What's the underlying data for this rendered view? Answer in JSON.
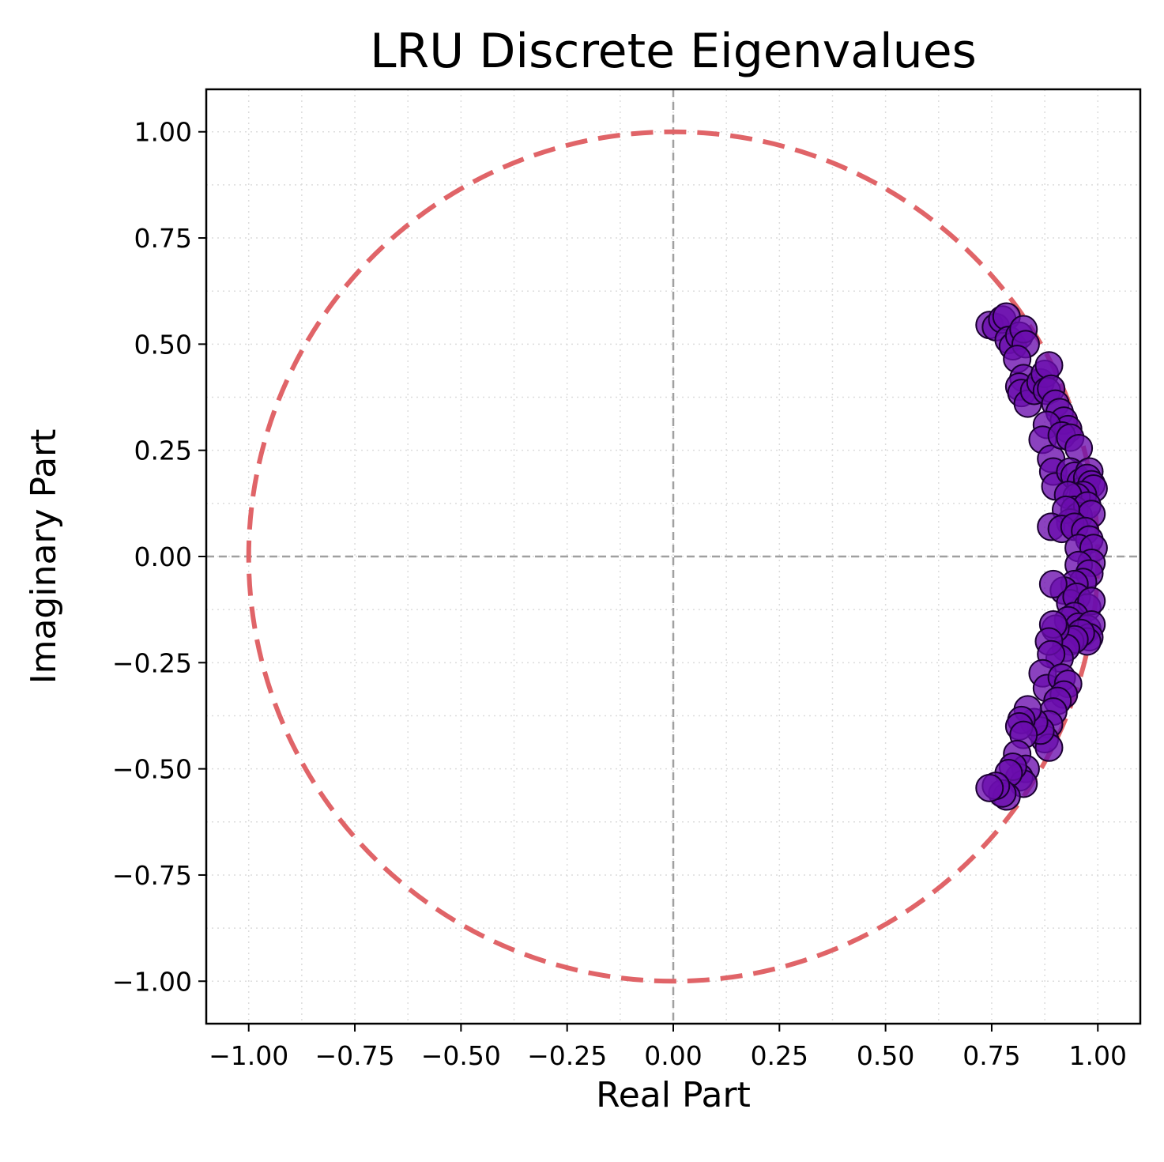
{
  "chart_data": {
    "type": "scatter",
    "title": "LRU Discrete Eigenvalues",
    "xlabel": "Real Part",
    "ylabel": "Imaginary Part",
    "xlim": [
      -1.1,
      1.1
    ],
    "ylim": [
      -1.1,
      1.1
    ],
    "x_ticks": [
      -1.0,
      -0.75,
      -0.5,
      -0.25,
      0.0,
      0.25,
      0.5,
      0.75,
      1.0
    ],
    "x_tick_labels": [
      "−1.00",
      "−0.75",
      "−0.50",
      "−0.25",
      "0.00",
      "0.25",
      "0.50",
      "0.75",
      "1.00"
    ],
    "y_ticks": [
      1.0,
      0.75,
      0.5,
      0.25,
      0.0,
      -0.25,
      -0.5,
      -0.75,
      -1.0
    ],
    "y_tick_labels": [
      "1.00",
      "0.75",
      "0.50",
      "0.25",
      "0.00",
      "−0.25",
      "−0.50",
      "−0.75",
      "−1.00"
    ],
    "grid": true,
    "reference_lines": {
      "x": 0,
      "y": 0,
      "color": "#a0a0a0"
    },
    "unit_circle": {
      "radius": 1.0,
      "color": "#e06468"
    },
    "marker_color": "#6a0dad",
    "points": [
      [
        0.745,
        0.545
      ],
      [
        0.76,
        0.54
      ],
      [
        0.775,
        0.558
      ],
      [
        0.785,
        0.565
      ],
      [
        0.79,
        0.51
      ],
      [
        0.8,
        0.495
      ],
      [
        0.815,
        0.52
      ],
      [
        0.825,
        0.535
      ],
      [
        0.83,
        0.5
      ],
      [
        0.81,
        0.465
      ],
      [
        0.825,
        0.42
      ],
      [
        0.815,
        0.4
      ],
      [
        0.82,
        0.385
      ],
      [
        0.835,
        0.36
      ],
      [
        0.85,
        0.39
      ],
      [
        0.865,
        0.41
      ],
      [
        0.875,
        0.43
      ],
      [
        0.885,
        0.45
      ],
      [
        0.88,
        0.39
      ],
      [
        0.89,
        0.395
      ],
      [
        0.9,
        0.36
      ],
      [
        0.91,
        0.34
      ],
      [
        0.92,
        0.32
      ],
      [
        0.93,
        0.3
      ],
      [
        0.88,
        0.31
      ],
      [
        0.87,
        0.275
      ],
      [
        0.89,
        0.23
      ],
      [
        0.895,
        0.2
      ],
      [
        0.9,
        0.165
      ],
      [
        0.915,
        0.285
      ],
      [
        0.935,
        0.28
      ],
      [
        0.955,
        0.255
      ],
      [
        0.935,
        0.2
      ],
      [
        0.945,
        0.19
      ],
      [
        0.96,
        0.175
      ],
      [
        0.97,
        0.16
      ],
      [
        0.98,
        0.2
      ],
      [
        0.975,
        0.185
      ],
      [
        0.985,
        0.17
      ],
      [
        0.99,
        0.16
      ],
      [
        0.965,
        0.145
      ],
      [
        0.95,
        0.14
      ],
      [
        0.93,
        0.145
      ],
      [
        0.945,
        0.11
      ],
      [
        0.955,
        0.095
      ],
      [
        0.975,
        0.12
      ],
      [
        0.985,
        0.1
      ],
      [
        0.935,
        0.08
      ],
      [
        0.925,
        0.11
      ],
      [
        0.89,
        0.07
      ],
      [
        0.915,
        0.065
      ],
      [
        0.945,
        0.07
      ],
      [
        0.97,
        0.06
      ],
      [
        0.98,
        0.04
      ],
      [
        0.955,
        0.02
      ],
      [
        0.99,
        0.02
      ],
      [
        0.985,
        -0.015
      ],
      [
        0.955,
        -0.02
      ],
      [
        0.98,
        -0.04
      ],
      [
        0.965,
        -0.06
      ],
      [
        0.945,
        -0.065
      ],
      [
        0.92,
        -0.08
      ],
      [
        0.895,
        -0.065
      ],
      [
        0.935,
        -0.11
      ],
      [
        0.95,
        -0.095
      ],
      [
        0.975,
        -0.12
      ],
      [
        0.985,
        -0.105
      ],
      [
        0.945,
        -0.14
      ],
      [
        0.93,
        -0.15
      ],
      [
        0.955,
        -0.165
      ],
      [
        0.965,
        -0.18
      ],
      [
        0.975,
        -0.17
      ],
      [
        0.985,
        -0.16
      ],
      [
        0.98,
        -0.19
      ],
      [
        0.975,
        -0.2
      ],
      [
        0.96,
        -0.18
      ],
      [
        0.935,
        -0.2
      ],
      [
        0.945,
        -0.195
      ],
      [
        0.925,
        -0.215
      ],
      [
        0.91,
        -0.24
      ],
      [
        0.9,
        -0.17
      ],
      [
        0.895,
        -0.16
      ],
      [
        0.885,
        -0.2
      ],
      [
        0.89,
        -0.23
      ],
      [
        0.87,
        -0.275
      ],
      [
        0.88,
        -0.31
      ],
      [
        0.915,
        -0.285
      ],
      [
        0.93,
        -0.3
      ],
      [
        0.92,
        -0.325
      ],
      [
        0.905,
        -0.34
      ],
      [
        0.895,
        -0.365
      ],
      [
        0.885,
        -0.395
      ],
      [
        0.875,
        -0.43
      ],
      [
        0.885,
        -0.45
      ],
      [
        0.865,
        -0.41
      ],
      [
        0.85,
        -0.39
      ],
      [
        0.835,
        -0.36
      ],
      [
        0.82,
        -0.385
      ],
      [
        0.815,
        -0.4
      ],
      [
        0.825,
        -0.42
      ],
      [
        0.81,
        -0.465
      ],
      [
        0.83,
        -0.5
      ],
      [
        0.815,
        -0.52
      ],
      [
        0.825,
        -0.535
      ],
      [
        0.8,
        -0.495
      ],
      [
        0.79,
        -0.51
      ],
      [
        0.785,
        -0.565
      ],
      [
        0.775,
        -0.558
      ],
      [
        0.76,
        -0.54
      ],
      [
        0.745,
        -0.545
      ]
    ]
  }
}
